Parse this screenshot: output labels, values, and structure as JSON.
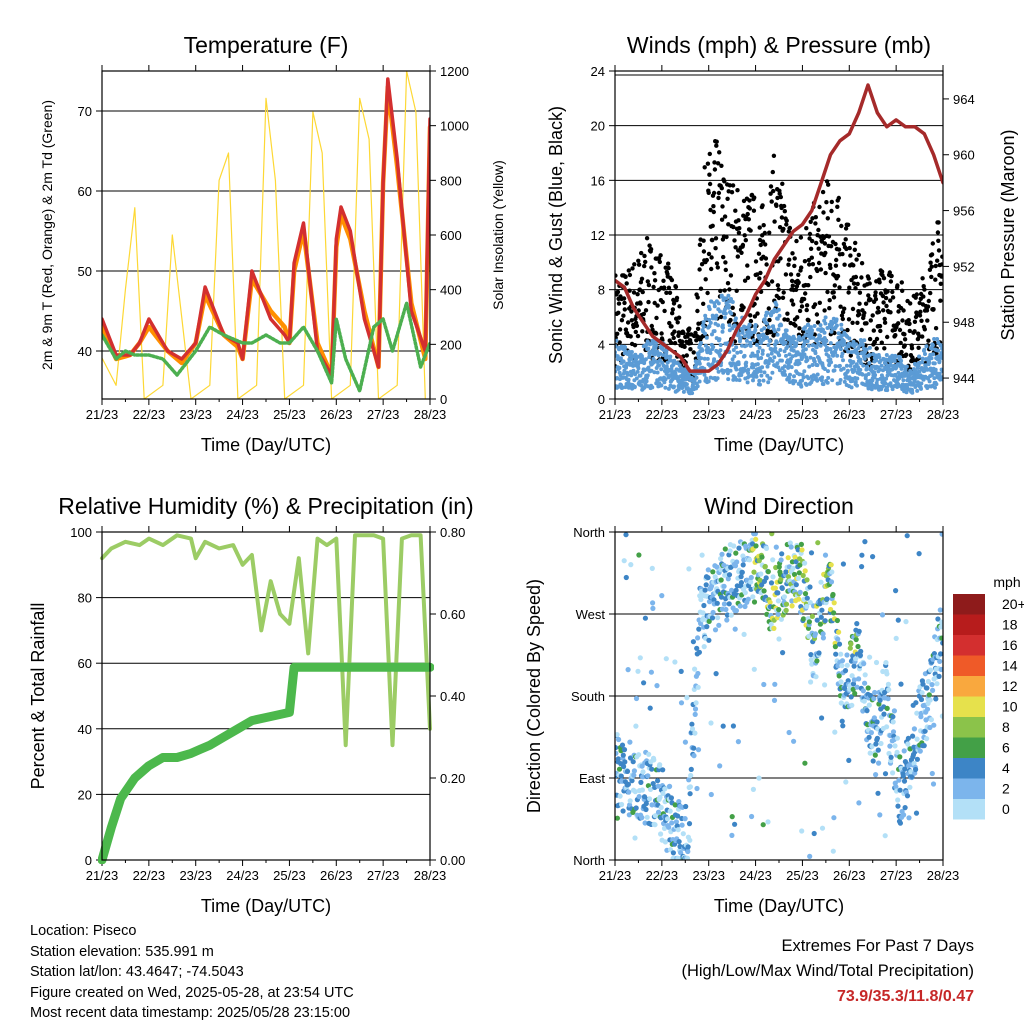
{
  "chart_data": [
    {
      "type": "line",
      "title": "Temperature (F)",
      "xlabel": "Time (Day/UTC)",
      "ylabel": "2m & 9m T (Red, Orange) & 2m Td (Green)",
      "y2label": "Solar Insolation (Yellow)",
      "categories": [
        "21/23",
        "22/23",
        "23/23",
        "24/23",
        "25/23",
        "26/23",
        "27/23",
        "28/23"
      ],
      "ylim": [
        34,
        75
      ],
      "y2lim": [
        0,
        1200
      ],
      "yticks": [
        40,
        50,
        60,
        70
      ],
      "y2ticks": [
        0,
        200,
        400,
        600,
        800,
        1000,
        1200
      ],
      "series": [
        {
          "color": "#d32f2f",
          "x": [
            0,
            0.3,
            0.6,
            0.8,
            1.0,
            1.4,
            1.7,
            2.0,
            2.2,
            2.6,
            2.9,
            3.0,
            3.2,
            3.6,
            3.9,
            4.0,
            4.1,
            4.3,
            4.6,
            4.9,
            5.0,
            5.1,
            5.3,
            5.6,
            5.9,
            6.0,
            6.1,
            6.3,
            6.6,
            6.9,
            7.0
          ],
          "y": [
            44,
            39.5,
            39.5,
            41,
            44,
            40,
            39,
            41,
            48,
            42,
            41,
            39,
            50,
            44,
            42,
            41,
            51,
            56,
            40,
            37,
            54,
            58,
            55,
            44,
            38,
            61,
            74,
            64,
            45,
            40,
            69
          ]
        },
        {
          "color": "#ff8f00",
          "x": [
            0,
            0.3,
            0.6,
            0.8,
            1.0,
            1.4,
            1.7,
            2.0,
            2.2,
            2.6,
            2.9,
            3.0,
            3.2,
            3.6,
            3.9,
            4.0,
            4.1,
            4.3,
            4.6,
            4.9,
            5.0,
            5.1,
            5.3,
            5.6,
            5.9,
            6.0,
            6.1,
            6.3,
            6.6,
            6.9,
            7.0
          ],
          "y": [
            43,
            39,
            39.5,
            41,
            43,
            40,
            38.5,
            41,
            47,
            42,
            40.5,
            39,
            49,
            45,
            43,
            41,
            50,
            55,
            41,
            37,
            53,
            57,
            54,
            45,
            38,
            61,
            73,
            63,
            46,
            39,
            68
          ]
        },
        {
          "color": "#4caf50",
          "x": [
            0,
            0.3,
            0.5,
            0.7,
            1.0,
            1.3,
            1.6,
            2.0,
            2.3,
            2.6,
            3.0,
            3.2,
            3.5,
            3.8,
            4.0,
            4.3,
            4.6,
            4.9,
            5.0,
            5.2,
            5.5,
            5.8,
            6.0,
            6.2,
            6.5,
            6.8,
            7.0
          ],
          "y": [
            42,
            39,
            40,
            39.5,
            39.5,
            39,
            37,
            40,
            43,
            42,
            41,
            41,
            42,
            41,
            41,
            43,
            40,
            36,
            44,
            39,
            35,
            43,
            44,
            40,
            46,
            38,
            41
          ]
        },
        {
          "color": "#fdd835",
          "x": [
            0,
            0.3,
            0.5,
            0.7,
            0.9,
            1.3,
            1.5,
            1.7,
            1.9,
            2.3,
            2.5,
            2.7,
            2.9,
            3.3,
            3.5,
            3.7,
            3.9,
            4.3,
            4.5,
            4.7,
            4.9,
            5.3,
            5.5,
            5.7,
            5.9,
            6.3,
            6.5,
            6.7,
            6.9
          ],
          "y": [
            150,
            50,
            400,
            700,
            0,
            50,
            600,
            300,
            0,
            50,
            800,
            900,
            0,
            50,
            1100,
            800,
            0,
            50,
            1050,
            900,
            0,
            50,
            1100,
            950,
            0,
            50,
            1200,
            1050,
            0
          ]
        }
      ]
    },
    {
      "type": "scatter",
      "title": "Winds (mph) & Pressure (mb)",
      "xlabel": "Time (Day/UTC)",
      "ylabel": "Sonic Wind & Gust (Blue, Black)",
      "y2label": "Station Pressure (Maroon)",
      "categories": [
        "21/23",
        "22/23",
        "23/23",
        "24/23",
        "25/23",
        "26/23",
        "27/23",
        "28/23"
      ],
      "ylim": [
        0,
        24
      ],
      "y2lim": [
        942.5,
        966
      ],
      "yticks": [
        0,
        4,
        8,
        12,
        16,
        20,
        24
      ],
      "y2ticks": [
        944,
        948,
        952,
        956,
        960,
        964
      ],
      "gust_color": "#000000",
      "wind_color": "#5b9bd5",
      "pressure": {
        "color": "#a52a2a",
        "x": [
          0,
          0.2,
          0.4,
          0.6,
          0.8,
          1.0,
          1.2,
          1.4,
          1.6,
          1.8,
          2.0,
          2.2,
          2.4,
          2.6,
          2.8,
          3.0,
          3.2,
          3.4,
          3.6,
          3.8,
          4.0,
          4.2,
          4.4,
          4.6,
          4.8,
          5.0,
          5.2,
          5.4,
          5.6,
          5.8,
          6.0,
          6.2,
          6.4,
          6.6,
          6.8,
          7.0
        ],
        "y": [
          951,
          950.5,
          949,
          948,
          947,
          946.5,
          946,
          945.5,
          944.5,
          944.5,
          944.5,
          945,
          946,
          947.5,
          948.5,
          950,
          951,
          952.5,
          953.5,
          954.5,
          955,
          956,
          958,
          960,
          961,
          961.5,
          963,
          965,
          963,
          962,
          962.5,
          962,
          962,
          961.5,
          960,
          958
        ]
      },
      "wind_envelope": [
        4,
        3.5,
        3,
        4,
        4,
        3,
        2,
        2,
        6,
        7,
        7,
        6,
        5,
        5,
        7,
        5,
        4,
        5,
        5,
        6,
        5,
        4,
        4,
        3,
        3,
        3,
        2,
        3,
        4,
        4
      ],
      "gust_envelope": [
        8,
        8,
        9,
        10,
        9,
        8,
        5,
        4,
        15,
        16,
        14,
        13,
        13,
        12,
        15,
        13,
        10,
        12,
        12,
        14,
        12,
        10,
        8,
        8,
        8,
        8,
        6,
        7,
        10,
        12
      ]
    },
    {
      "type": "line",
      "title": "Relative Humidity (%) & Precipitation (in)",
      "xlabel": "Time (Day/UTC)",
      "ylabel": "Percent & Total Rainfall",
      "categories": [
        "21/23",
        "22/23",
        "23/23",
        "24/23",
        "25/23",
        "26/23",
        "27/23",
        "28/23"
      ],
      "ylim": [
        0,
        100
      ],
      "y2lim": [
        0,
        0.8
      ],
      "yticks": [
        0,
        20,
        40,
        60,
        80,
        100
      ],
      "y2ticks": [
        "0.00",
        "0.20",
        "0.40",
        "0.60",
        "0.80"
      ],
      "series": [
        {
          "color": "#9ccc65",
          "x": [
            0,
            0.2,
            0.5,
            0.8,
            1.0,
            1.3,
            1.6,
            1.9,
            2.0,
            2.2,
            2.5,
            2.8,
            3.0,
            3.2,
            3.4,
            3.6,
            3.8,
            4.0,
            4.2,
            4.4,
            4.6,
            4.8,
            5.0,
            5.2,
            5.4,
            5.6,
            5.8,
            6.0,
            6.2,
            6.4,
            6.6,
            6.8,
            7.0
          ],
          "y": [
            92,
            95,
            97,
            96,
            98,
            96,
            99,
            98,
            92,
            97,
            95,
            96,
            90,
            93,
            70,
            85,
            75,
            72,
            92,
            63,
            98,
            96,
            98,
            35,
            99,
            99,
            99,
            98,
            35,
            98,
            99,
            99,
            40
          ]
        },
        {
          "color": "#4cb84c",
          "x": [
            0,
            0.2,
            0.4,
            0.7,
            1.0,
            1.3,
            1.6,
            1.9,
            2.1,
            2.3,
            2.6,
            2.9,
            3.2,
            3.6,
            4.0,
            4.1,
            4.6,
            5.0,
            6.0,
            7.0
          ],
          "y": [
            0,
            0.08,
            0.15,
            0.2,
            0.23,
            0.25,
            0.25,
            0.26,
            0.27,
            0.28,
            0.3,
            0.32,
            0.34,
            0.35,
            0.36,
            0.47,
            0.47,
            0.47,
            0.47,
            0.47
          ]
        }
      ]
    },
    {
      "type": "scatter",
      "title": "Wind Direction",
      "xlabel": "Time (Day/UTC)",
      "ylabel": "Direction (Colored By Speed)",
      "categories": [
        "21/23",
        "22/23",
        "23/23",
        "24/23",
        "25/23",
        "26/23",
        "27/23",
        "28/23"
      ],
      "yticks": [
        "North",
        "East",
        "South",
        "West",
        "North"
      ],
      "legend_title": "mph",
      "legend": [
        {
          "label": "20+",
          "color": "#8e1b1b"
        },
        {
          "label": "18",
          "color": "#b71c1c"
        },
        {
          "label": "16",
          "color": "#d32f2f"
        },
        {
          "label": "14",
          "color": "#ef5a28"
        },
        {
          "label": "12",
          "color": "#f9a83e"
        },
        {
          "label": "10",
          "color": "#e6e14c"
        },
        {
          "label": "8",
          "color": "#8bc34a"
        },
        {
          "label": "6",
          "color": "#43a047"
        },
        {
          "label": "4",
          "color": "#3d85c6"
        },
        {
          "label": "2",
          "color": "#7cb5ec"
        },
        {
          "label": "0",
          "color": "#b3e0f7"
        }
      ],
      "direction_envelope": [
        1.1,
        1.0,
        0.9,
        0.8,
        0.4,
        0.2,
        3.0,
        3.2,
        3.4,
        3.5,
        3.6,
        3.2,
        3.4,
        3.5,
        2.6,
        3.5,
        2.0,
        2.5,
        1.5,
        2.0,
        0.8,
        1.5,
        2.0,
        2.8
      ]
    }
  ],
  "info": {
    "location": "Location: Piseco",
    "elevation": "Station elevation: 535.991 m",
    "latlon": "Station lat/lon: 43.4647; -74.5043",
    "created": "Figure created on Wed, 2025-05-28, at 23:54 UTC",
    "recent": "Most recent data timestamp: 2025/05/28 23:15:00"
  },
  "extremes": {
    "title": "Extremes For Past 7 Days",
    "subtitle": "(High/Low/Max Wind/Total Precipitation)",
    "values": "73.9/35.3/11.8/0.47"
  }
}
